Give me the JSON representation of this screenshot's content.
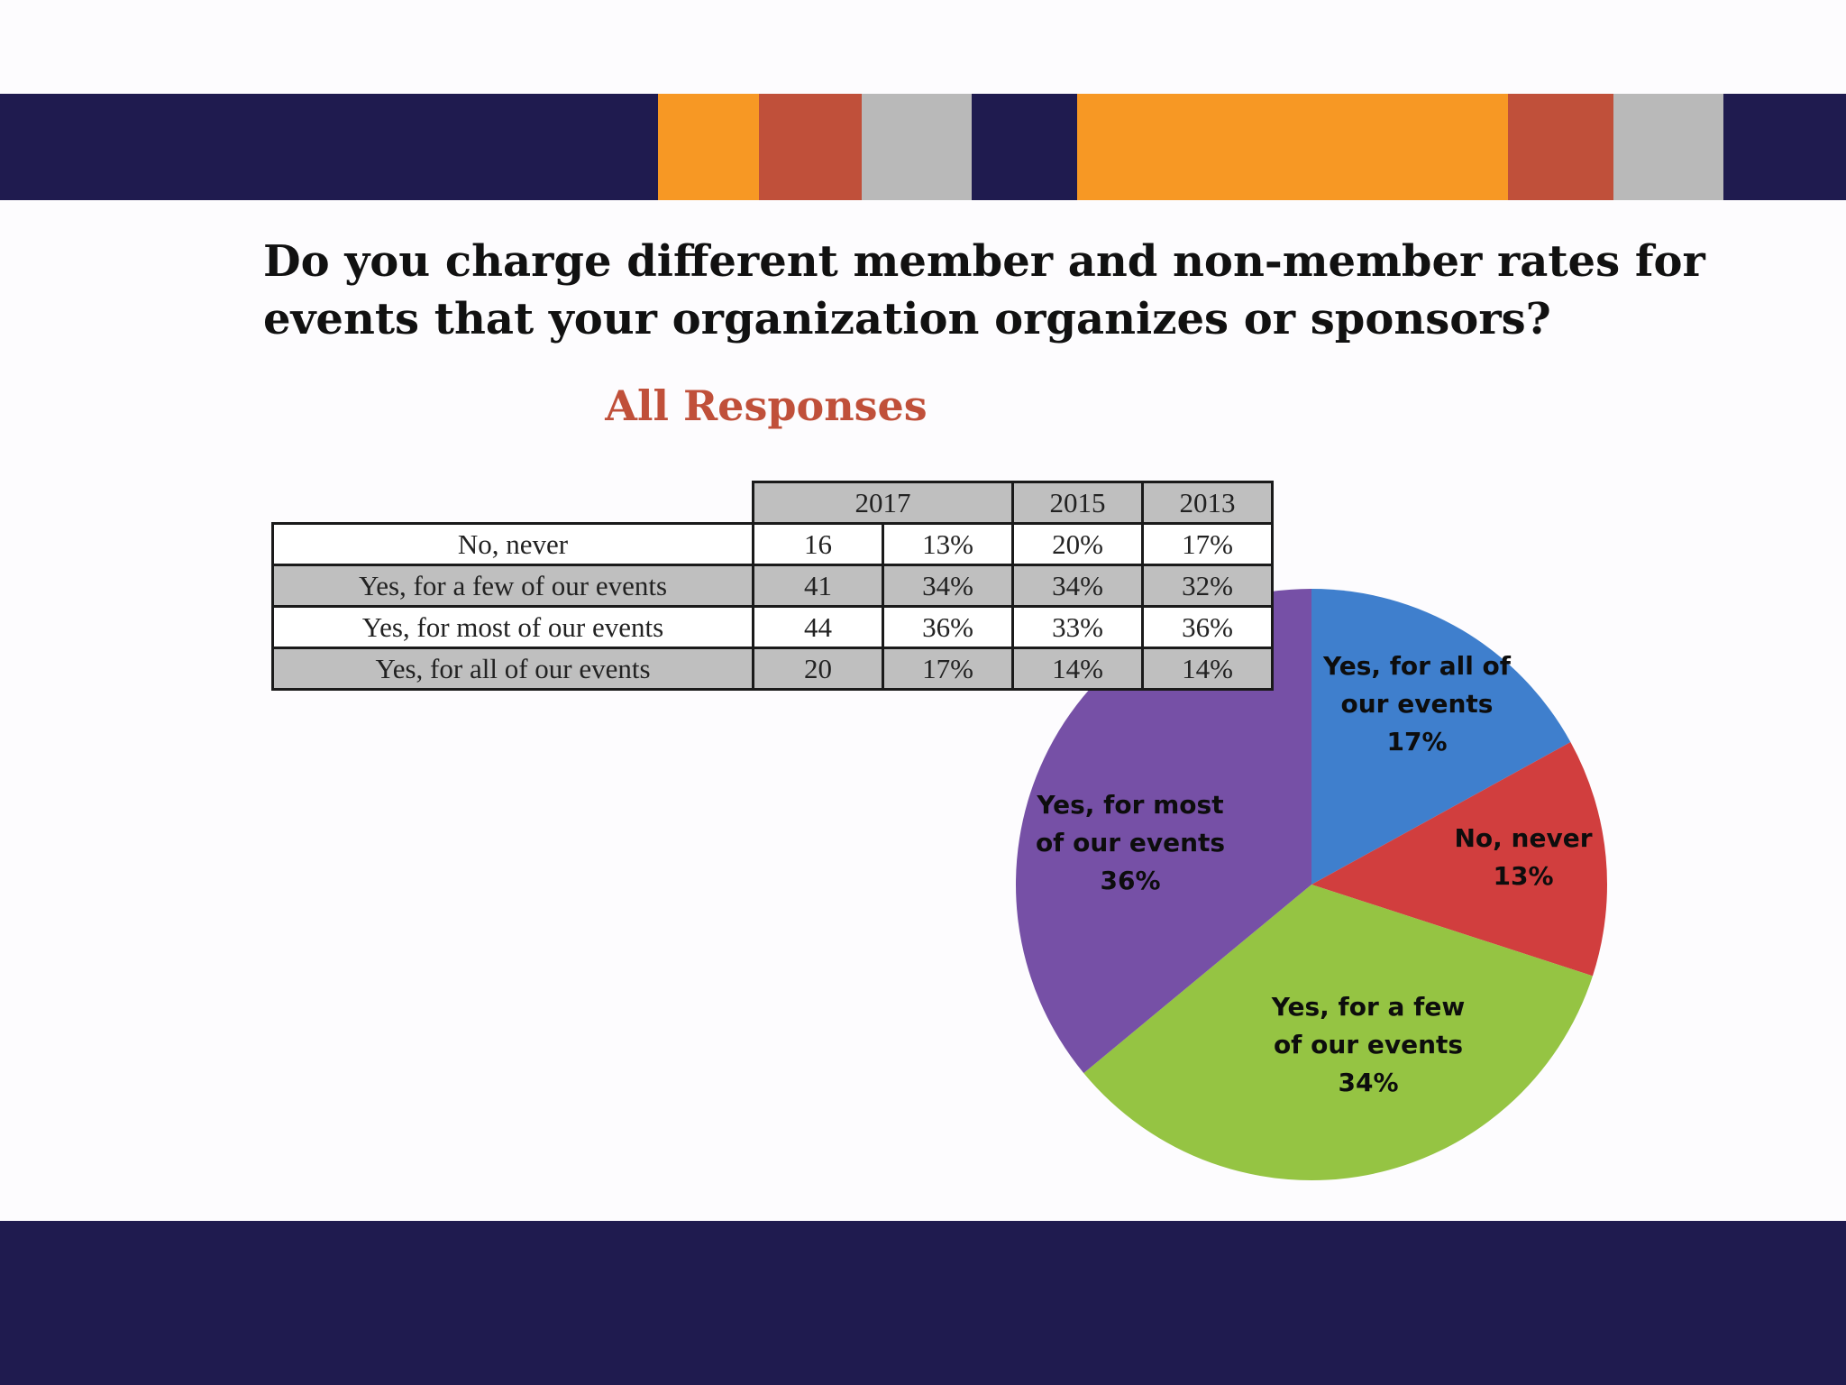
{
  "colors": {
    "navy": "#1f1b4f",
    "orange": "#f79824",
    "rust": "#c0503a",
    "gray": "#b9b9b9",
    "accent_title": "#c0503a",
    "slice_blue": "#3f7fcd",
    "slice_red": "#d13e3e",
    "slice_green": "#95c443",
    "slice_purple": "#7650a6"
  },
  "slide": {
    "question": "Do you charge different member and non-member rates for events that your organization organizes or sponsors?",
    "subtitle": "All Responses"
  },
  "table": {
    "headers": [
      "2017",
      "2015",
      "2013"
    ],
    "rows": [
      {
        "label": "No, never",
        "count": "16",
        "pct_2017": "13%",
        "pct_2015": "20%",
        "pct_2013": "17%"
      },
      {
        "label": "Yes, for a few of our events",
        "count": "41",
        "pct_2017": "34%",
        "pct_2015": "34%",
        "pct_2013": "32%"
      },
      {
        "label": "Yes, for most of our events",
        "count": "44",
        "pct_2017": "36%",
        "pct_2015": "33%",
        "pct_2013": "36%"
      },
      {
        "label": "Yes, for all of our events",
        "count": "20",
        "pct_2017": "17%",
        "pct_2015": "14%",
        "pct_2013": "14%"
      }
    ]
  },
  "chart_data": {
    "type": "pie",
    "title": "All Responses",
    "slices": [
      {
        "label_lines": [
          "Yes, for all of",
          "our events",
          "17%"
        ],
        "value": 17,
        "color": "#3f7fcd"
      },
      {
        "label_lines": [
          "No, never",
          "13%"
        ],
        "value": 13,
        "color": "#d13e3e"
      },
      {
        "label_lines": [
          "Yes, for a few",
          "of our events",
          "34%"
        ],
        "value": 34,
        "color": "#95c443"
      },
      {
        "label_lines": [
          "Yes, for most",
          "of our events",
          "36%"
        ],
        "value": 36,
        "color": "#7650a6"
      }
    ]
  }
}
